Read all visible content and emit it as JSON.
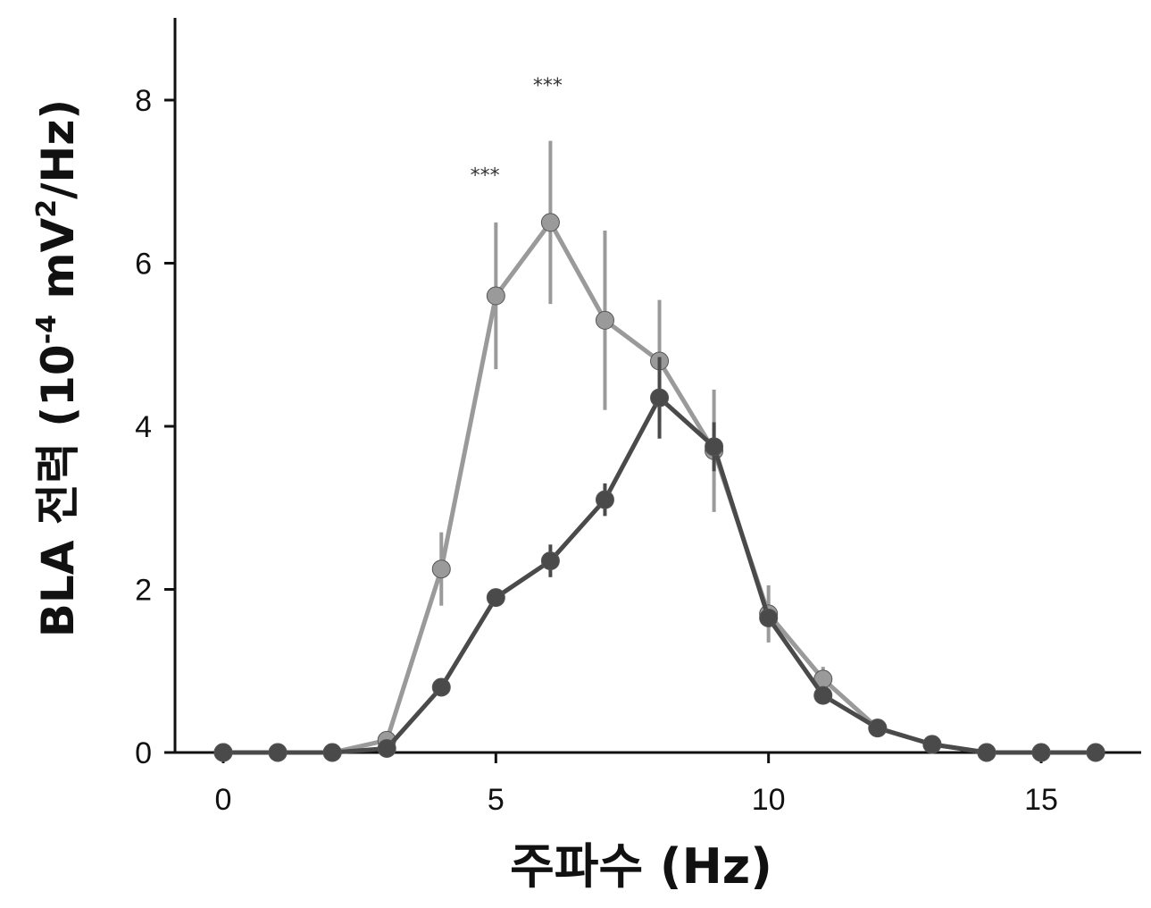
{
  "chart_data": {
    "type": "line",
    "title": "",
    "xlabel": "주파수 (Hz)",
    "ylabel_main": "BLA 전력 (10",
    "ylabel_exp1": "-4",
    "ylabel_mid": " mV",
    "ylabel_exp2": "2",
    "ylabel_end": "/Hz)",
    "xlim": [
      -1,
      17
    ],
    "ylim": [
      0,
      9
    ],
    "xticks": [
      0,
      5,
      10,
      15
    ],
    "yticks": [
      0,
      2,
      4,
      6,
      8
    ],
    "grid": false,
    "series": [
      {
        "color": "#9a9a9a",
        "x": [
          0,
          1,
          2,
          3,
          4,
          5,
          6,
          7,
          8,
          9,
          10,
          11,
          12,
          13,
          14,
          15,
          16
        ],
        "y": [
          0,
          0,
          0,
          0.15,
          2.25,
          5.6,
          6.5,
          5.3,
          4.8,
          3.7,
          1.7,
          0.9,
          0.3,
          0.1,
          0,
          0,
          0
        ],
        "err": [
          0,
          0,
          0,
          0.05,
          0.45,
          0.9,
          1.0,
          1.1,
          0.75,
          0.75,
          0.35,
          0.15,
          0.05,
          0.02,
          0,
          0,
          0
        ]
      },
      {
        "color": "#4a4a4a",
        "x": [
          0,
          1,
          2,
          3,
          4,
          5,
          6,
          7,
          8,
          9,
          10,
          11,
          12,
          13,
          14,
          15,
          16
        ],
        "y": [
          0,
          0,
          0,
          0.05,
          0.8,
          1.9,
          2.35,
          3.1,
          4.35,
          3.75,
          1.65,
          0.7,
          0.3,
          0.1,
          0,
          0,
          0
        ],
        "err": [
          0,
          0,
          0,
          0.02,
          0.08,
          0.1,
          0.2,
          0.2,
          0.5,
          0.3,
          0.1,
          0.05,
          0.03,
          0.02,
          0,
          0,
          0
        ]
      }
    ],
    "annotations": [
      {
        "x": 4.8,
        "y": 7.0,
        "text": "***"
      },
      {
        "x": 5.95,
        "y": 8.1,
        "text": "***"
      }
    ]
  }
}
